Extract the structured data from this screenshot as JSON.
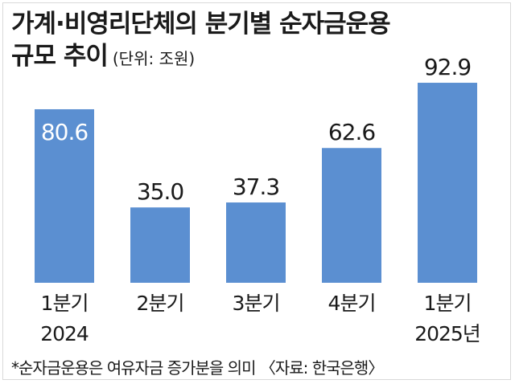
{
  "title_line1": "가계·비영리단체의 분기별 순자금운용",
  "title_line2": "규모 추이",
  "unit": "(단위: 조원)",
  "footnote": "*순자금운용은 여유자금 증가분을 의미 〈자료: 한국은행〉",
  "colors": {
    "bar": "#5b8fd1",
    "text": "#1a1a1a",
    "inside_label": "#ffffff"
  },
  "chart_data": {
    "type": "bar",
    "categories": [
      "1분기\n2024",
      "2분기",
      "3분기",
      "4분기",
      "1분기\n2025년"
    ],
    "category_lines": [
      [
        "1분기",
        "2024"
      ],
      [
        "2분기"
      ],
      [
        "3분기"
      ],
      [
        "4분기"
      ],
      [
        "1분기",
        "2025년"
      ]
    ],
    "values": [
      80.6,
      35.0,
      37.3,
      62.6,
      92.9
    ],
    "value_labels": [
      "80.6",
      "35.0",
      "37.3",
      "62.6",
      "92.9"
    ],
    "ylim": [
      0,
      100
    ],
    "label_inside": [
      true,
      false,
      false,
      false,
      false
    ],
    "xlabel": "",
    "ylabel": ""
  }
}
